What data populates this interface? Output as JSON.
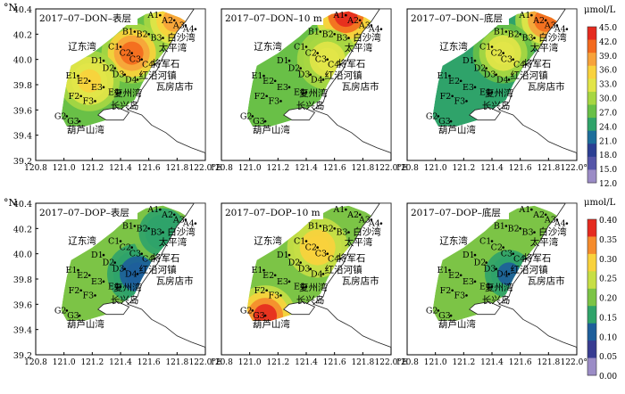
{
  "figure": {
    "y_unit": "°N",
    "x_unit": "°E",
    "x_ticks": [
      "120.8",
      "121.0",
      "121.2",
      "121.4",
      "121.6",
      "121.8",
      "122.0"
    ],
    "y_ticks": [
      "40.4",
      "40.2",
      "40.0",
      "39.8",
      "39.6",
      "39.4",
      "39.2"
    ],
    "place_names": {
      "liaodong_bay": "辽东湾",
      "baisha_bay": "白沙湾",
      "taiping_bay": "太平湾",
      "jiangjunshi": "将军石",
      "hongyanhe": "红沿河镇",
      "wafangdian": "瓦房店市",
      "huludao_bay": "葫芦山湾",
      "changxing_island": "长兴岛",
      "fuzhou_bay": "复州湾"
    },
    "stations": [
      "A1",
      "A2",
      "A3",
      "A4",
      "B1",
      "B2",
      "B3",
      "C1",
      "C2",
      "C3",
      "C4",
      "D1",
      "D2",
      "D3",
      "D4",
      "E1",
      "E2",
      "E3",
      "E4",
      "F2",
      "F3",
      "G2",
      "G3"
    ]
  },
  "chart_data": [
    {
      "type": "heatmap",
      "title": "2017–07–DON–表层",
      "variable": "DON",
      "layer": "表层",
      "hotspots": [
        {
          "station": "C2",
          "value": 42
        },
        {
          "station": "E2",
          "value": 36
        },
        {
          "station": "A2",
          "value": 40
        }
      ],
      "base_value": 27
    },
    {
      "type": "heatmap",
      "title": "2017–07–DON–10 m",
      "variable": "DON",
      "layer": "10 m",
      "hotspots": [
        {
          "station": "A1",
          "value": 45
        },
        {
          "station": "C3",
          "value": 33
        }
      ],
      "base_value": 27
    },
    {
      "type": "heatmap",
      "title": "2017–07–DON–底层",
      "variable": "DON",
      "layer": "底层",
      "hotspots": [
        {
          "station": "A2",
          "value": 42
        },
        {
          "station": "C2",
          "value": 34
        }
      ],
      "base_value": 24
    },
    {
      "type": "heatmap",
      "title": "2017–07–DOP–表层",
      "variable": "DOP",
      "layer": "表层",
      "hotspots": [
        {
          "station": "D4",
          "value": 0.08
        },
        {
          "station": "B3",
          "value": 0.15
        }
      ],
      "base_value": 0.2
    },
    {
      "type": "heatmap",
      "title": "2017–07–DOP–10 m",
      "variable": "DOP",
      "layer": "10 m",
      "hotspots": [
        {
          "station": "G3",
          "value": 0.42
        },
        {
          "station": "C2",
          "value": 0.3
        }
      ],
      "base_value": 0.2
    },
    {
      "type": "heatmap",
      "title": "2017–07–DOP–底层",
      "variable": "DOP",
      "layer": "底层",
      "hotspots": [
        {
          "station": "D4",
          "value": 0.1
        }
      ],
      "base_value": 0.2
    }
  ],
  "colorbars": [
    {
      "unit": "μmol/L",
      "ticks": [
        "45.0",
        "42.0",
        "39.0",
        "36.0",
        "33.0",
        "30.0",
        "27.0",
        "24.0",
        "21.0",
        "18.0",
        "15.0",
        "12.0"
      ],
      "colors": [
        "#e52a1e",
        "#f36a1e",
        "#f7a23a",
        "#f9d23c",
        "#e2e548",
        "#a7d742",
        "#69c047",
        "#2fa36a",
        "#1d6e9b",
        "#2b3f93",
        "#5555a8",
        "#9b8cc6"
      ]
    },
    {
      "unit": "μmol/L",
      "ticks": [
        "0.40",
        "0.35",
        "0.30",
        "0.25",
        "0.20",
        "0.15",
        "0.10",
        "0.05",
        "0.00"
      ],
      "colors": [
        "#e52a1e",
        "#f58b2c",
        "#f9d23c",
        "#c7df45",
        "#7cc446",
        "#2fa36a",
        "#1d5e9b",
        "#383c91",
        "#9b8cc6"
      ]
    }
  ]
}
